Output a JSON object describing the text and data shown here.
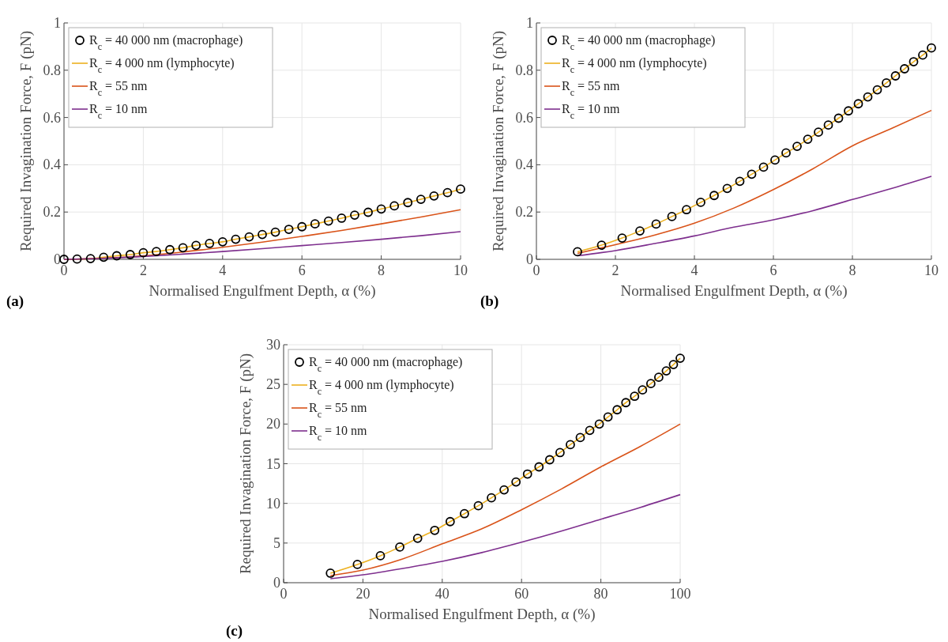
{
  "chart_data": [
    {
      "type": "line",
      "xlabel": "Normalised Engulfment Depth, α (%)",
      "ylabel": "Required Invagination Force, F (pN)",
      "annotations": [
        "(a)"
      ],
      "xlim": [
        0,
        10
      ],
      "xticks": [
        0,
        2,
        4,
        6,
        8,
        10
      ],
      "ylim": [
        0,
        1
      ],
      "yticks": [
        0,
        0.2,
        0.4,
        0.6,
        0.8,
        1
      ],
      "grid": true,
      "legend": "top left",
      "series": [
        {
          "name": "R$_{c}$ = 40 000 nm (macrophage)",
          "type": "scatter",
          "marker": "circle",
          "color": "#000000",
          "x": [
            0,
            0.33,
            0.67,
            1,
            1.33,
            1.67,
            2,
            2.33,
            2.67,
            3,
            3.33,
            3.67,
            4,
            4.33,
            4.67,
            5,
            5.33,
            5.67,
            6,
            6.33,
            6.67,
            7,
            7.33,
            7.67,
            8,
            8.33,
            8.67,
            9,
            9.33,
            9.67,
            10
          ],
          "values": [
            0,
            0.001,
            0.003,
            0.009,
            0.015,
            0.02,
            0.028,
            0.033,
            0.041,
            0.049,
            0.059,
            0.067,
            0.074,
            0.085,
            0.095,
            0.105,
            0.115,
            0.127,
            0.138,
            0.15,
            0.162,
            0.174,
            0.187,
            0.199,
            0.213,
            0.226,
            0.24,
            0.254,
            0.268,
            0.282,
            0.297
          ]
        },
        {
          "name": "R$_{c}$ = 4 000 nm (lymphocyte)",
          "color": "#edb120",
          "x": [
            0,
            0.33,
            0.67,
            1,
            1.33,
            1.67,
            2,
            2.33,
            2.67,
            3,
            3.33,
            3.67,
            4,
            4.33,
            4.67,
            5,
            5.33,
            5.67,
            6,
            6.33,
            6.67,
            7,
            7.33,
            7.67,
            8,
            8.33,
            8.67,
            9,
            9.33,
            9.67,
            10
          ],
          "values": [
            0,
            0.001,
            0.003,
            0.009,
            0.015,
            0.02,
            0.028,
            0.033,
            0.041,
            0.049,
            0.059,
            0.067,
            0.074,
            0.085,
            0.095,
            0.105,
            0.115,
            0.127,
            0.138,
            0.15,
            0.162,
            0.174,
            0.187,
            0.199,
            0.213,
            0.226,
            0.24,
            0.254,
            0.268,
            0.282,
            0.297
          ]
        },
        {
          "name": "R$_{c}$ = 55 nm",
          "color": "#d95319",
          "x": [
            0,
            1,
            2,
            3,
            4,
            5,
            6,
            7,
            8,
            9,
            10
          ],
          "values": [
            0,
            0.005,
            0.015,
            0.031,
            0.051,
            0.073,
            0.097,
            0.122,
            0.15,
            0.179,
            0.21
          ]
        },
        {
          "name": "R$_{c}$ = 10 nm",
          "color": "#7e2f8e",
          "x": [
            0,
            1,
            2,
            3,
            4,
            5,
            6,
            7,
            8,
            9,
            10
          ],
          "values": [
            0,
            0.004,
            0.012,
            0.022,
            0.033,
            0.045,
            0.058,
            0.071,
            0.085,
            0.1,
            0.117
          ]
        }
      ]
    },
    {
      "type": "line",
      "xlabel": "Normalised Engulfment Depth, α (%)",
      "ylabel": "Required Invagination Force, F (pN)",
      "annotations": [
        "(b)"
      ],
      "xlim": [
        0,
        10
      ],
      "xticks": [
        0,
        2,
        4,
        6,
        8,
        10
      ],
      "ylim": [
        0,
        1
      ],
      "yticks": [
        0,
        0.2,
        0.4,
        0.6,
        0.8,
        1
      ],
      "grid": true,
      "legend": "top left",
      "series": [
        {
          "name": "R$_{c}$ = 40 000 nm (macrophage)",
          "type": "scatter",
          "marker": "circle",
          "color": "#000000",
          "x": [
            1.04,
            1.65,
            2.17,
            2.62,
            3.03,
            3.43,
            3.8,
            4.16,
            4.5,
            4.83,
            5.15,
            5.45,
            5.75,
            6.04,
            6.32,
            6.6,
            6.87,
            7.14,
            7.39,
            7.65,
            7.9,
            8.15,
            8.39,
            8.63,
            8.86,
            9.09,
            9.32,
            9.55,
            9.78,
            10
          ],
          "values": [
            0.032,
            0.06,
            0.09,
            0.12,
            0.149,
            0.181,
            0.21,
            0.241,
            0.27,
            0.3,
            0.33,
            0.36,
            0.39,
            0.42,
            0.45,
            0.478,
            0.508,
            0.538,
            0.568,
            0.597,
            0.628,
            0.658,
            0.687,
            0.717,
            0.746,
            0.776,
            0.806,
            0.836,
            0.864,
            0.894
          ]
        },
        {
          "name": "R$_{c}$ = 4 000 nm (lymphocyte)",
          "color": "#edb120",
          "x": [
            1.04,
            1.65,
            2.17,
            2.62,
            3.03,
            3.43,
            3.8,
            4.16,
            4.5,
            4.83,
            5.15,
            5.45,
            5.75,
            6.04,
            6.32,
            6.6,
            6.87,
            7.14,
            7.39,
            7.65,
            7.9,
            8.15,
            8.39,
            8.63,
            8.86,
            9.09,
            9.32,
            9.55,
            9.78,
            10
          ],
          "values": [
            0.032,
            0.06,
            0.09,
            0.12,
            0.149,
            0.181,
            0.21,
            0.241,
            0.27,
            0.3,
            0.33,
            0.36,
            0.39,
            0.42,
            0.45,
            0.478,
            0.508,
            0.538,
            0.568,
            0.597,
            0.628,
            0.658,
            0.687,
            0.717,
            0.746,
            0.776,
            0.806,
            0.836,
            0.864,
            0.894
          ]
        },
        {
          "name": "R$_{c}$ = 55 nm",
          "color": "#d95319",
          "x": [
            1.04,
            2,
            3,
            4,
            5,
            6,
            7,
            8,
            9,
            10
          ],
          "values": [
            0.025,
            0.062,
            0.103,
            0.153,
            0.217,
            0.295,
            0.383,
            0.48,
            0.554,
            0.63
          ]
        },
        {
          "name": "R$_{c}$ = 10 nm",
          "color": "#7e2f8e",
          "x": [
            1.04,
            2,
            3,
            4,
            5,
            6,
            7,
            8,
            9,
            10
          ],
          "values": [
            0.015,
            0.037,
            0.067,
            0.099,
            0.136,
            0.167,
            0.206,
            0.253,
            0.3,
            0.351
          ]
        }
      ]
    },
    {
      "type": "line",
      "xlabel": "Normalised Engulfment Depth, α (%)",
      "ylabel": "Required Invagination Force, F (pN)",
      "annotations": [
        "(c)"
      ],
      "xlim": [
        0,
        100
      ],
      "xticks": [
        0,
        20,
        40,
        60,
        80,
        100
      ],
      "ylim": [
        0,
        30
      ],
      "yticks": [
        0,
        5,
        10,
        15,
        20,
        25,
        30
      ],
      "grid": true,
      "legend": "top left",
      "series": [
        {
          "name": "R$_{c}$ = 40 000 nm (macrophage)",
          "type": "scatter",
          "marker": "circle",
          "color": "#000000",
          "x": [
            11.8,
            18.6,
            24.4,
            29.3,
            33.8,
            38.1,
            42,
            45.6,
            49.1,
            52.4,
            55.6,
            58.6,
            61.5,
            64.4,
            67.1,
            69.7,
            72.3,
            74.8,
            77.2,
            79.6,
            81.8,
            84.1,
            86.3,
            88.5,
            90.5,
            92.6,
            94.6,
            96.5,
            98.3,
            100
          ],
          "values": [
            1.2,
            2.3,
            3.4,
            4.5,
            5.6,
            6.6,
            7.7,
            8.7,
            9.7,
            10.7,
            11.7,
            12.7,
            13.7,
            14.6,
            15.5,
            16.4,
            17.4,
            18.3,
            19.2,
            20,
            20.9,
            21.8,
            22.7,
            23.5,
            24.3,
            25.1,
            25.9,
            26.7,
            27.5,
            28.3
          ]
        },
        {
          "name": "R$_{c}$ = 4 000 nm (lymphocyte)",
          "color": "#edb120",
          "x": [
            11.8,
            18.6,
            24.4,
            29.3,
            33.8,
            38.1,
            42,
            45.6,
            49.1,
            52.4,
            55.6,
            58.6,
            61.5,
            64.4,
            67.1,
            69.7,
            72.3,
            74.8,
            77.2,
            79.6,
            81.8,
            84.1,
            86.3,
            88.5,
            90.5,
            92.6,
            94.6,
            96.5,
            98.3,
            100
          ],
          "values": [
            1.2,
            2.3,
            3.4,
            4.5,
            5.6,
            6.6,
            7.7,
            8.7,
            9.7,
            10.7,
            11.7,
            12.7,
            13.7,
            14.6,
            15.5,
            16.4,
            17.4,
            18.3,
            19.2,
            20,
            20.9,
            21.8,
            22.7,
            23.5,
            24.3,
            25.1,
            25.9,
            26.7,
            27.5,
            28.3
          ]
        },
        {
          "name": "R$_{c}$ = 55 nm",
          "color": "#d95319",
          "x": [
            11.8,
            20,
            30,
            40,
            50,
            60,
            70,
            80,
            90,
            100
          ],
          "values": [
            0.9,
            1.6,
            3,
            4.9,
            6.8,
            9.2,
            11.8,
            14.6,
            17.2,
            20
          ]
        },
        {
          "name": "R$_{c}$ = 10 nm",
          "color": "#7e2f8e",
          "x": [
            11.8,
            20,
            30,
            40,
            50,
            60,
            70,
            80,
            90,
            100
          ],
          "values": [
            0.5,
            1,
            1.8,
            2.7,
            3.8,
            5.1,
            6.5,
            8,
            9.5,
            11.1
          ]
        }
      ]
    }
  ]
}
